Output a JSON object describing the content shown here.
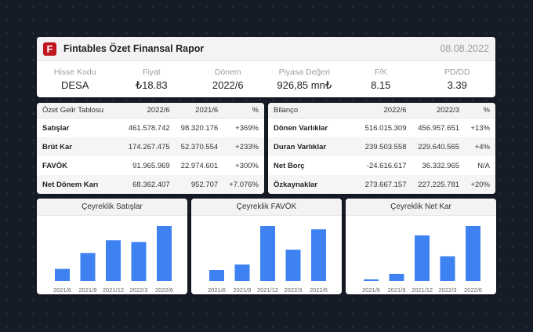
{
  "header": {
    "logo_letter": "F",
    "title": "Fintables Özet Finansal Rapor",
    "date": "08.08.2022",
    "metrics": [
      {
        "label": "Hisse Kodu",
        "value": "DESA"
      },
      {
        "label": "Fiyat",
        "value": "₺18.83"
      },
      {
        "label": "Dönem",
        "value": "2022/6"
      },
      {
        "label": "Piyasa Değeri",
        "value": "926,85 mn₺"
      },
      {
        "label": "F/K",
        "value": "8.15"
      },
      {
        "label": "PD/DD",
        "value": "3.39"
      }
    ]
  },
  "income": {
    "headers": [
      "Özet Gelir Tablosu",
      "2022/6",
      "2021/6",
      "%"
    ],
    "rows": [
      [
        "Satışlar",
        "461.578.742",
        "98.320.176",
        "+369%"
      ],
      [
        "Brüt Kar",
        "174.267.475",
        "52.370.554",
        "+233%"
      ],
      [
        "FAVÖK",
        "91.965.969",
        "22.974.601",
        "+300%"
      ],
      [
        "Net Dönem Karı",
        "68.362.407",
        "952.707",
        "+7.076%"
      ]
    ]
  },
  "balance": {
    "headers": [
      "Bilanço",
      "2022/6",
      "2022/3",
      "%"
    ],
    "rows": [
      [
        "Dönen Varlıklar",
        "516.015.309",
        "456.957.651",
        "+13%"
      ],
      [
        "Duran Varlıklar",
        "239.503.558",
        "229.640.565",
        "+4%"
      ],
      [
        "Net Borç",
        "-24.616.617",
        "36.332.965",
        "N/A"
      ],
      [
        "Özkaynaklar",
        "273.667.157",
        "227.225.781",
        "+20%"
      ]
    ]
  },
  "colors": {
    "bar": "#3d82f0",
    "positive": "#25b062",
    "brand": "#c0161f"
  },
  "chart_data": [
    {
      "type": "bar",
      "title": "Çeyreklik Satışlar",
      "categories": [
        "2021/6",
        "2021/9",
        "2021/12",
        "2022/3",
        "2022/6"
      ],
      "values": [
        22,
        51,
        74,
        71,
        100
      ],
      "ylim": [
        0,
        100
      ]
    },
    {
      "type": "bar",
      "title": "Çeyreklik FAVÖK",
      "categories": [
        "2021/6",
        "2021/9",
        "2021/12",
        "2022/3",
        "2022/6"
      ],
      "values": [
        20,
        30,
        100,
        57,
        94
      ],
      "ylim": [
        0,
        100
      ]
    },
    {
      "type": "bar",
      "title": "Çeyreklik Net Kar",
      "categories": [
        "2021/6",
        "2021/9",
        "2021/12",
        "2022/3",
        "2022/6"
      ],
      "values": [
        3,
        13,
        83,
        45,
        100
      ],
      "ylim": [
        0,
        100
      ]
    }
  ]
}
